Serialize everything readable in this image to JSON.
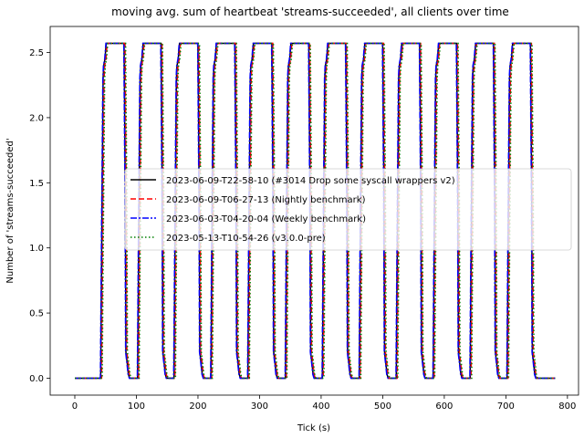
{
  "chart_data": {
    "type": "line",
    "title": "moving avg. sum of heartbeat 'streams-succeeded', all clients over time",
    "xlabel": "Tick (s)",
    "ylabel": "Number of 'streams-succeeded'",
    "xlim": [
      -40,
      818
    ],
    "ylim": [
      -0.13,
      2.7
    ],
    "xticks": [
      0,
      100,
      200,
      300,
      400,
      500,
      600,
      700,
      800
    ],
    "xtick_labels": [
      "0",
      "100",
      "200",
      "300",
      "400",
      "500",
      "600",
      "700",
      "800"
    ],
    "yticks": [
      0.0,
      0.5,
      1.0,
      1.5,
      2.0,
      2.5
    ],
    "ytick_labels": [
      "0.0",
      "0.5",
      "1.0",
      "1.5",
      "2.0",
      "2.5"
    ],
    "grid": false,
    "legend_position": "center-right",
    "cycle": {
      "rise_start": [
        42,
        102,
        161,
        221,
        281,
        342,
        402,
        462,
        522,
        582,
        642,
        702
      ],
      "fall_start": [
        80,
        140,
        200,
        260,
        320,
        380,
        440,
        500,
        560,
        620,
        680,
        740
      ],
      "low": 0.0,
      "high": 2.57
    },
    "x_end": 780,
    "series": [
      {
        "name": "2023-06-09-T22-58-10 (#3014 Drop some syscall wrappers v2)",
        "color": "#000000",
        "dash": "solid",
        "offset": 0
      },
      {
        "name": "2023-06-09-T06-27-13 (Nightly benchmark)",
        "color": "#ff0000",
        "dash": "dashed",
        "offset": 1.5
      },
      {
        "name": "2023-06-03-T04-20-04 (Weekly benchmark)",
        "color": "#0000ff",
        "dash": "dashdot",
        "offset": -0.5
      },
      {
        "name": "2023-05-13-T10-54-26 (v3.0.0-pre)",
        "color": "#008000",
        "dash": "dotted",
        "offset": 2.5
      }
    ]
  }
}
